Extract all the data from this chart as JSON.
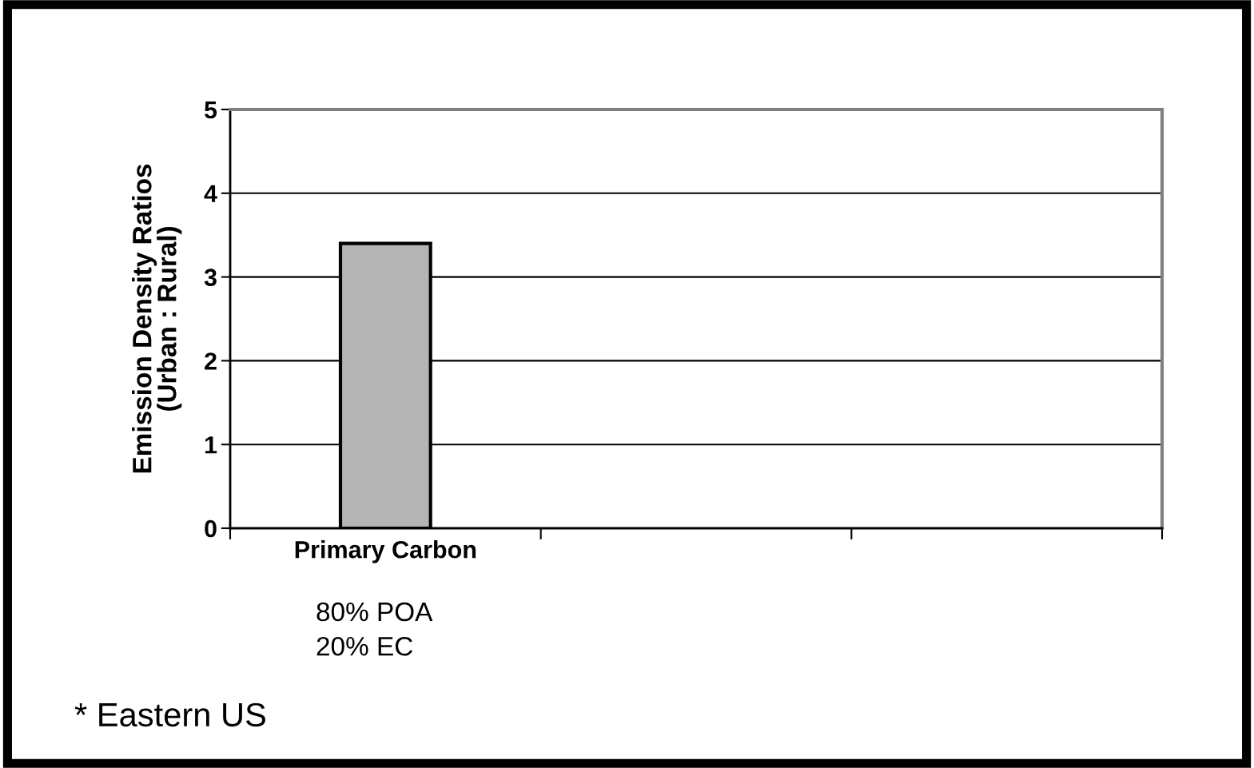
{
  "chart_data": {
    "type": "bar",
    "ylabel": "Emission Density Ratios\n(Urban : Rural)",
    "categories": [
      "Primary Carbon",
      null,
      null
    ],
    "series": [
      {
        "color": "#b4b4b4",
        "values": [
          3.4,
          null,
          null
        ]
      }
    ],
    "ylim": [
      0,
      5
    ],
    "yticks": [
      0,
      1,
      2,
      3,
      4,
      5
    ],
    "grid": "y",
    "legend": false,
    "annotations": [
      "80% POA\n20% EC",
      "* Eastern US"
    ]
  }
}
